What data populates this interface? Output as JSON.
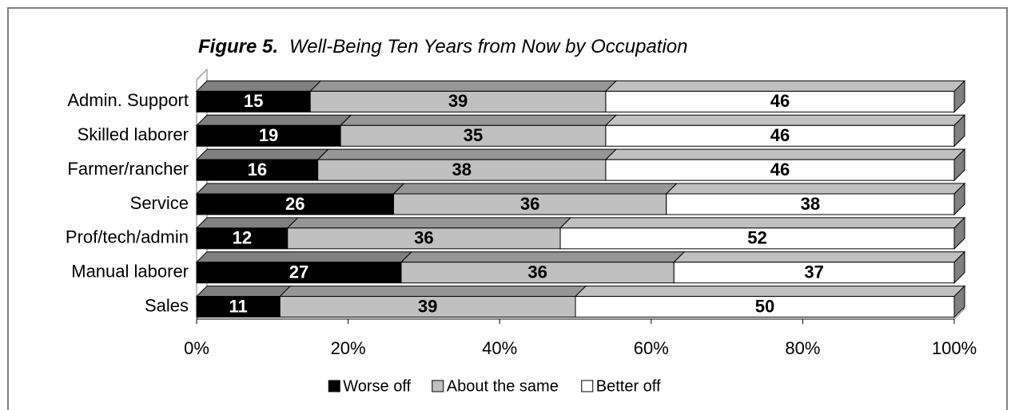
{
  "chart_data": {
    "type": "stacked-bar-3d",
    "figure_label": "Figure 5.",
    "title": "Well-Being Ten Years from Now by Occupation",
    "categories": [
      "Admin. Support",
      "Skilled laborer",
      "Farmer/rancher",
      "Service",
      "Prof/tech/admin",
      "Manual laborer",
      "Sales"
    ],
    "series": [
      {
        "name": "Worse off",
        "color": "#000000",
        "label_color": "#ffffff",
        "top_color": "#808080",
        "values": [
          15,
          19,
          16,
          26,
          12,
          27,
          11
        ]
      },
      {
        "name": "About the same",
        "color": "#c0c0c0",
        "label_color": "#000000",
        "top_color": "#969696",
        "values": [
          39,
          35,
          38,
          36,
          36,
          36,
          39
        ]
      },
      {
        "name": "Better off",
        "color": "#ffffff",
        "label_color": "#000000",
        "top_color": "#c0c0c0",
        "values": [
          46,
          46,
          46,
          38,
          52,
          37,
          50
        ]
      }
    ],
    "xlim": [
      0,
      100
    ],
    "xticks": [
      {
        "value": 0,
        "label": "0%"
      },
      {
        "value": 20,
        "label": "20%"
      },
      {
        "value": 40,
        "label": "40%"
      },
      {
        "value": 60,
        "label": "60%"
      },
      {
        "value": 80,
        "label": "80%"
      },
      {
        "value": 100,
        "label": "100%"
      }
    ],
    "legend": "bottom"
  }
}
